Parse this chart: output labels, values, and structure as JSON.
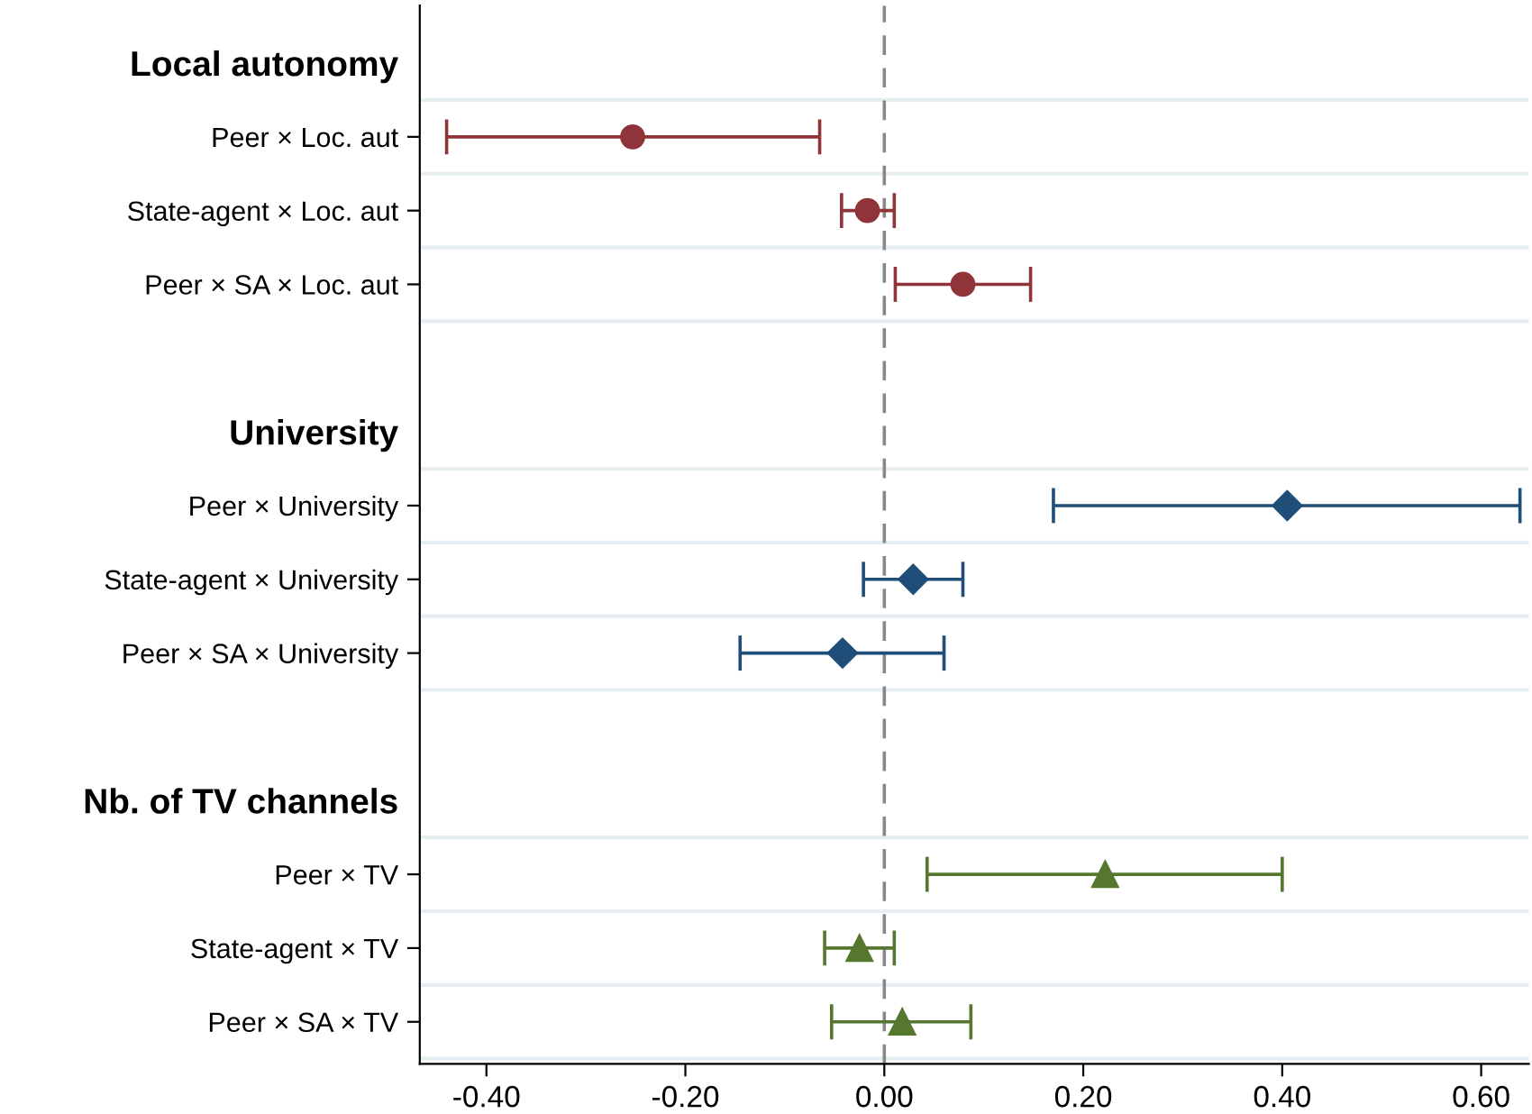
{
  "chart_data": {
    "type": "scatter",
    "orientation": "horizontal",
    "categories": [
      "Local autonomy",
      "Peer × Loc. aut",
      "State-agent × Loc. aut",
      "Peer × SA × Loc. aut",
      null,
      "University",
      "Peer × University",
      "State-agent × University",
      "Peer × SA × University",
      null,
      "Nb. of TV channels",
      "Peer × TV",
      "State-agent × TV",
      "Peer × SA × TV"
    ],
    "series": [
      {
        "color": "#8f3438",
        "marker": "circle",
        "values": [
          null,
          -0.253,
          -0.017,
          0.079,
          null,
          null,
          null,
          null,
          null,
          null,
          null,
          null,
          null,
          null
        ],
        "errors": [
          null,
          [
            -0.44,
            -0.065
          ],
          [
            -0.043,
            0.01
          ],
          [
            0.011,
            0.147
          ],
          null,
          null,
          null,
          null,
          null,
          null,
          null,
          null,
          null,
          null
        ]
      },
      {
        "color": "#1f4e79",
        "marker": "diamond",
        "values": [
          null,
          null,
          null,
          null,
          null,
          null,
          0.405,
          0.029,
          -0.042,
          null,
          null,
          null,
          null,
          null
        ],
        "errors": [
          null,
          null,
          null,
          null,
          null,
          null,
          [
            0.17,
            0.639
          ],
          [
            -0.021,
            0.079
          ],
          [
            -0.145,
            0.06
          ],
          null,
          null,
          null,
          null,
          null
        ]
      },
      {
        "color": "#55772f",
        "marker": "triangle",
        "values": [
          null,
          null,
          null,
          null,
          null,
          null,
          null,
          null,
          null,
          null,
          null,
          0.222,
          -0.025,
          0.018
        ],
        "errors": [
          null,
          null,
          null,
          null,
          null,
          null,
          null,
          null,
          null,
          null,
          null,
          [
            0.043,
            0.4
          ],
          [
            -0.06,
            0.01
          ],
          [
            -0.053,
            0.087
          ]
        ]
      }
    ],
    "xlim": [
      -0.467,
      0.648
    ],
    "xticks": [
      {
        "value": -0.4,
        "label": "-0.40"
      },
      {
        "value": -0.2,
        "label": "-0.20"
      },
      {
        "value": 0,
        "label": "0.00"
      },
      {
        "value": 0.2,
        "label": "0.20"
      },
      {
        "value": 0.4,
        "label": "0.40"
      },
      {
        "value": 0.6,
        "label": "0.60"
      }
    ],
    "ref_lines": [
      {
        "axis": "x",
        "value": 0,
        "color": "#888888",
        "line_style": "dashed"
      }
    ],
    "grid": "y"
  }
}
